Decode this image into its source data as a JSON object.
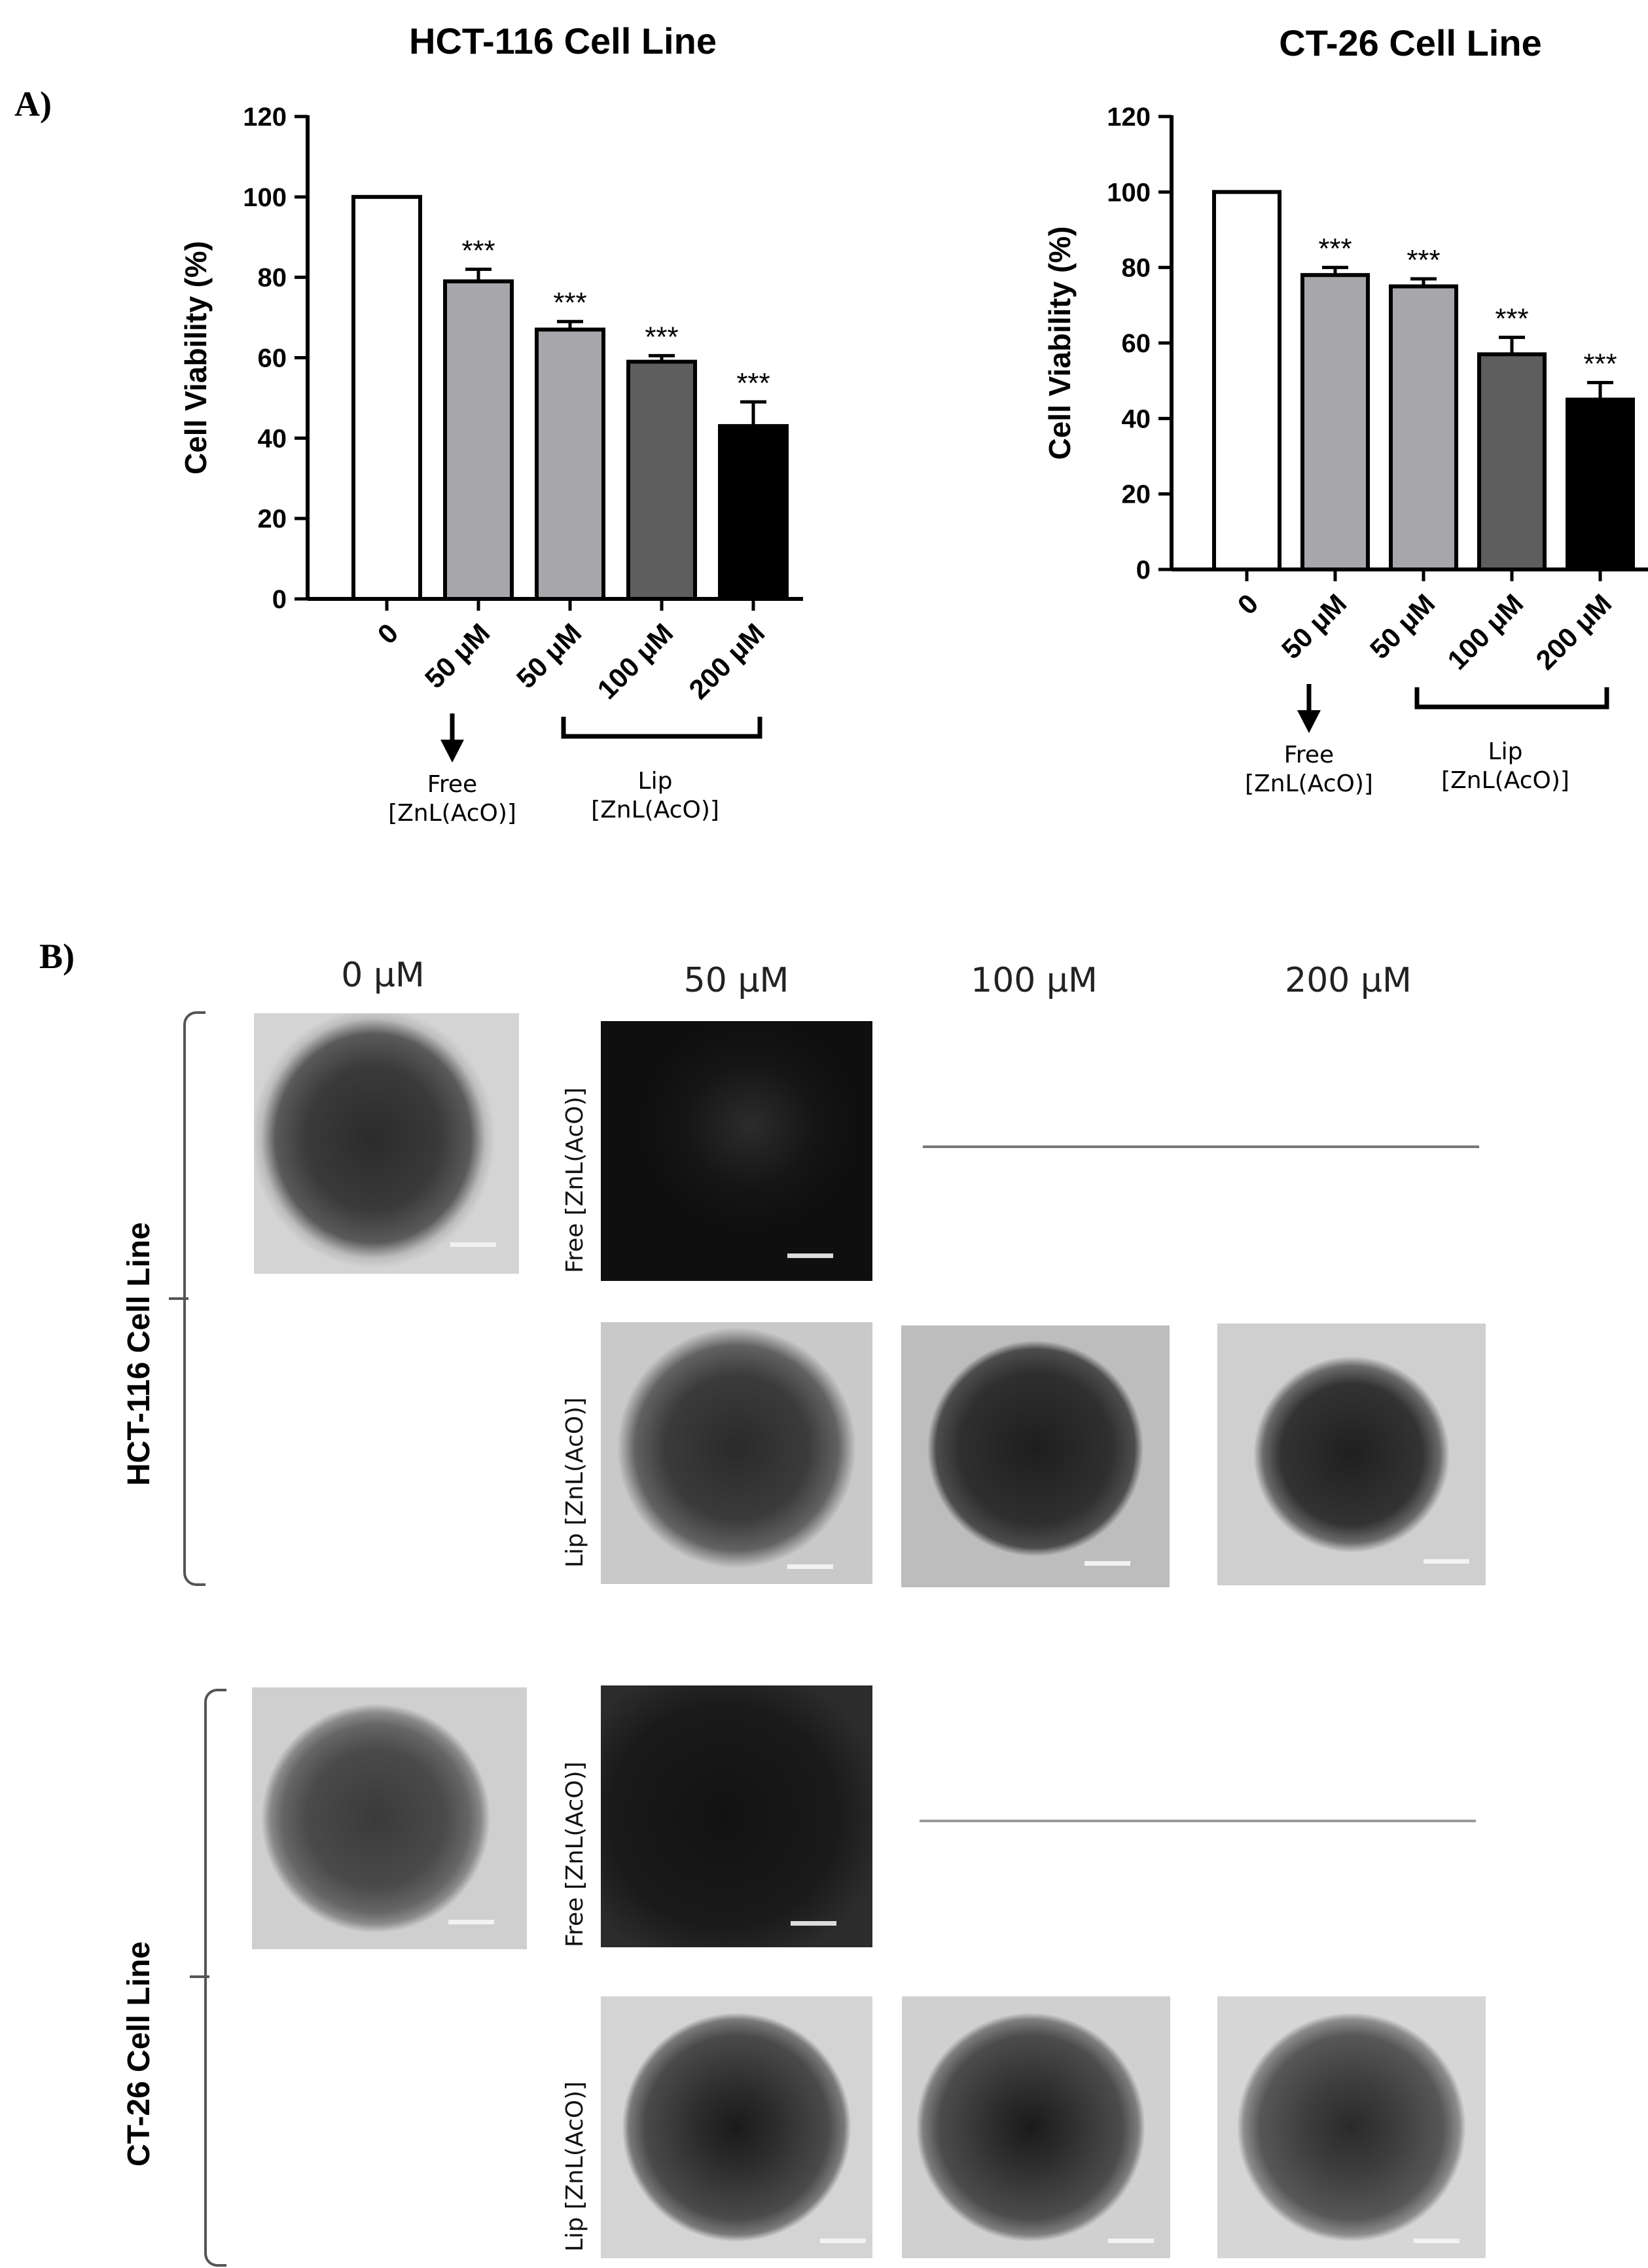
{
  "panels": {
    "a_label": "A)",
    "b_label": "B)"
  },
  "chart_data": [
    {
      "type": "bar",
      "title": "HCT-116 Cell Line",
      "ylabel": "Cell Viability (%)",
      "ylim": [
        0,
        120
      ],
      "yticks": [
        0,
        20,
        40,
        60,
        80,
        100,
        120
      ],
      "categories": [
        "0",
        "50 μM",
        "50 μM",
        "100 μM",
        "200 μM"
      ],
      "values": [
        100,
        79,
        67,
        59,
        43
      ],
      "errors": [
        0,
        3,
        2,
        1.5,
        6
      ],
      "significance": [
        "",
        "***",
        "***",
        "***",
        "***"
      ],
      "colors": [
        "#ffffff",
        "#a6a6ab",
        "#a6a6ab",
        "#5e5e5e",
        "#000000"
      ],
      "groups": [
        {
          "label": "Free\n[ZnL(AcO)]",
          "start": 1,
          "end": 1,
          "style": "arrow"
        },
        {
          "label": "Lip\n[ZnL(AcO)]",
          "start": 2,
          "end": 4,
          "style": "bracket"
        }
      ]
    },
    {
      "type": "bar",
      "title": "CT-26 Cell Line",
      "ylabel": "Cell Viability (%)",
      "ylim": [
        0,
        120
      ],
      "yticks": [
        0,
        20,
        40,
        60,
        80,
        100,
        120
      ],
      "categories": [
        "0",
        "50 μM",
        "50 μM",
        "100 μM",
        "200 μM"
      ],
      "values": [
        100,
        78,
        75,
        57,
        45
      ],
      "errors": [
        0,
        2,
        2,
        4.5,
        4.5
      ],
      "significance": [
        "",
        "***",
        "***",
        "***",
        "***"
      ],
      "colors": [
        "#ffffff",
        "#a6a6ab",
        "#a6a6ab",
        "#5e5e5e",
        "#000000"
      ],
      "groups": [
        {
          "label": "Free\n[ZnL(AcO)]",
          "start": 1,
          "end": 1,
          "style": "arrow"
        },
        {
          "label": "Lip\n[ZnL(AcO)]",
          "start": 2,
          "end": 4,
          "style": "bracket"
        }
      ]
    }
  ],
  "panel_b": {
    "columns": [
      "0 μM",
      "50 μM",
      "100 μM",
      "200 μM"
    ],
    "cell_lines": [
      "HCT-116 Cell Line",
      "CT-26 Cell Line"
    ],
    "row_labels": {
      "free": "Free [ZnL(AcO)]",
      "lip": "Lip [ZnL(AcO)]"
    }
  }
}
